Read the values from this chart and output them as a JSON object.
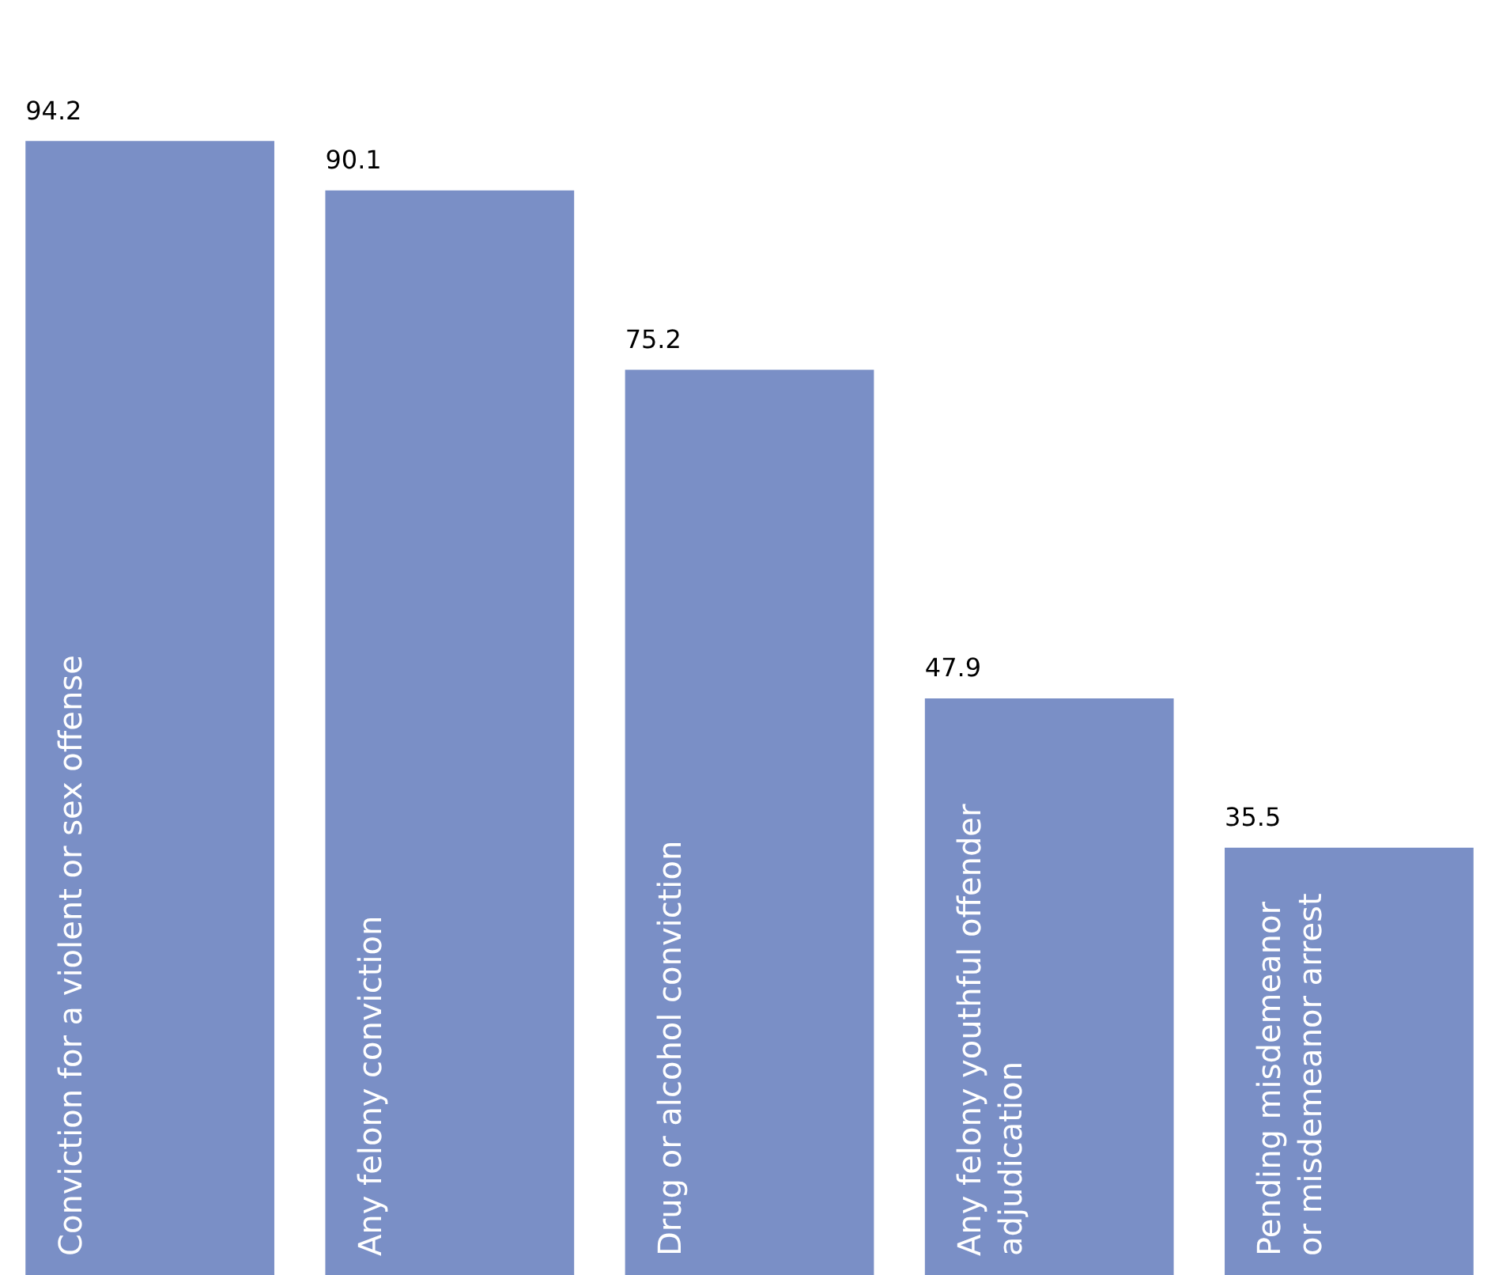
{
  "chart_data": {
    "type": "bar",
    "categories": [
      "Conviction for a violent or sex offense",
      "Any felony conviction",
      "Drug or alcohol conviction",
      "Any felony youthful offender adjudication",
      "Pending misdemeanor or misdemeanor arrest"
    ],
    "values": [
      94.2,
      90.1,
      75.2,
      47.9,
      35.5
    ],
    "color": "#7a8fc6",
    "data_labels": true
  }
}
